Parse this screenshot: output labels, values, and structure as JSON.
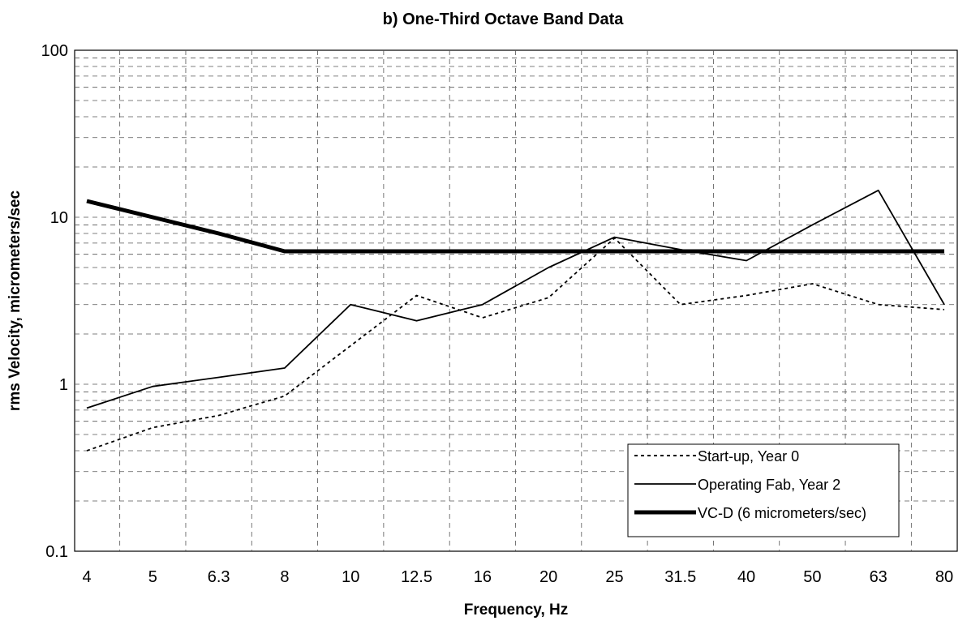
{
  "chart_data": {
    "type": "line",
    "title": "b) One-Third Octave Band Data",
    "xlabel": "Frequency, Hz",
    "ylabel": "rms Velocity, micrometers/sec",
    "categories": [
      "4",
      "5",
      "6.3",
      "8",
      "10",
      "12.5",
      "16",
      "20",
      "25",
      "31.5",
      "40",
      "50",
      "63",
      "80"
    ],
    "y_scale": "log",
    "ylim": [
      0.1,
      100
    ],
    "y_ticks": [
      "0.1",
      "1",
      "10",
      "100"
    ],
    "grid": "dashed major and minor",
    "legend_position": "lower-right",
    "series": [
      {
        "name": "Start-up, Year 0",
        "style": "dotted",
        "color": "#000000",
        "values": [
          0.4,
          0.55,
          0.65,
          0.85,
          1.7,
          3.4,
          2.5,
          3.3,
          7.5,
          3.0,
          3.4,
          4.0,
          3.0,
          2.8
        ]
      },
      {
        "name": "Operating Fab, Year 2",
        "style": "solid-thin",
        "color": "#000000",
        "values": [
          0.72,
          0.97,
          1.1,
          1.25,
          3.0,
          2.4,
          3.0,
          5.0,
          7.6,
          6.4,
          5.5,
          9.0,
          14.5,
          3.0
        ]
      },
      {
        "name": "VC-D (6 micrometers/sec)",
        "style": "solid-thick",
        "color": "#000000",
        "values": [
          12.5,
          10.0,
          8.0,
          6.25,
          6.25,
          6.25,
          6.25,
          6.25,
          6.25,
          6.25,
          6.25,
          6.25,
          6.25,
          6.25
        ]
      }
    ]
  }
}
